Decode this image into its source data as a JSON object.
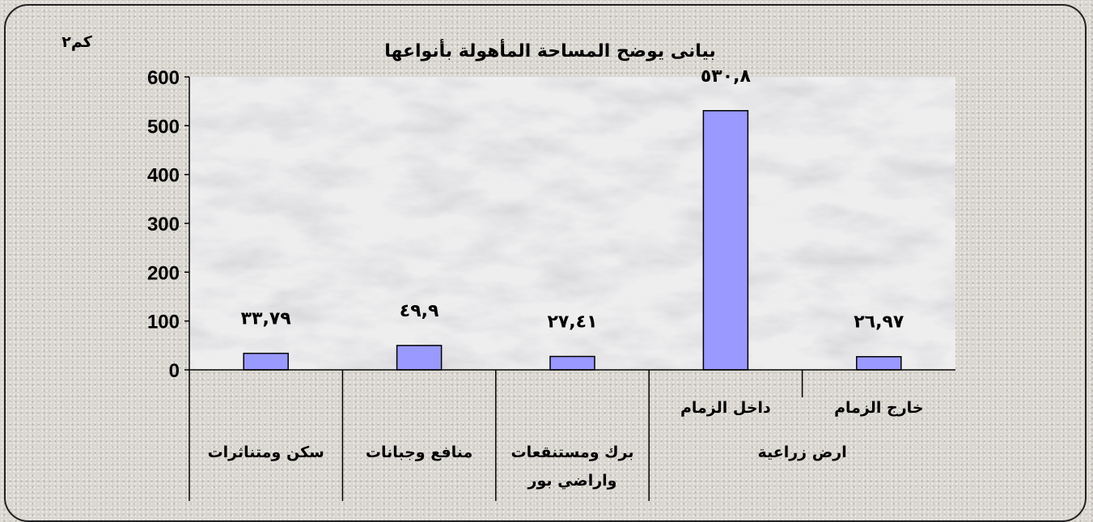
{
  "chart_data": {
    "type": "bar",
    "title": "بيانى يوضح المساحة المأهولة  بأنواعها",
    "unit_label": "كم٢",
    "ylim": [
      0,
      600
    ],
    "yticks": [
      0,
      100,
      200,
      300,
      400,
      500,
      600
    ],
    "grid": false,
    "bar_color": "#9999ff",
    "bar_border_color": "#000000",
    "categories": [
      {
        "label": "سكن ومتناثرات",
        "value": 33.79,
        "value_label": "٣٣,٧٩"
      },
      {
        "label": "منافع وجبانات",
        "value": 49.9,
        "value_label": "٤٩,٩"
      },
      {
        "label": "برك ومستنقعات واراضي بور",
        "lines": [
          "برك ومستنقعات",
          "واراضي بور"
        ],
        "value": 27.41,
        "value_label": "٢٧,٤١"
      },
      {
        "label": "داخل الزمام",
        "group": "ارض زراعية",
        "value": 530.8,
        "value_label": "٥٣٠,٨"
      },
      {
        "label": "خارج الزمام",
        "group": "ارض زراعية",
        "value": 26.97,
        "value_label": "٢٦,٩٧"
      }
    ],
    "group_label": "ارض زراعية"
  }
}
